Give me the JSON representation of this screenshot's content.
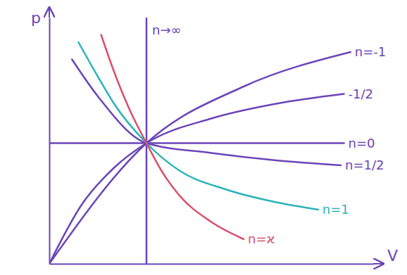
{
  "chart_data": {
    "type": "line",
    "x_label": "V",
    "y_label": "p",
    "xlim": [
      0,
      10
    ],
    "ylim": [
      0,
      10
    ],
    "xticks": [],
    "yticks": [],
    "tick_labels": false,
    "grid": false,
    "series": [
      {
        "name": "n→∞",
        "color": "#6b45b8",
        "x": [
          3,
          3
        ],
        "values": [
          0,
          10
        ]
      },
      {
        "name": "n=-1",
        "color": "#6b45b8",
        "x": [
          0,
          3,
          6,
          9.3
        ],
        "values": [
          0,
          4.9,
          7.2,
          8.6
        ]
      },
      {
        "name": "-1/2",
        "color": "#6b45b8",
        "x": [
          0,
          1,
          2,
          3,
          5,
          7,
          9.1
        ],
        "values": [
          0,
          2.4,
          3.9,
          4.9,
          5.9,
          6.5,
          6.9
        ]
      },
      {
        "name": "n=0",
        "color": "#6b45b8",
        "x": [
          0,
          3,
          9.1
        ],
        "values": [
          4.9,
          4.9,
          4.9
        ]
      },
      {
        "name": "n=1/2",
        "color": "#6b45b8",
        "x": [
          0.7,
          1.5,
          3,
          5,
          7,
          9
        ],
        "values": [
          8.3,
          6.8,
          4.9,
          4.5,
          4.2,
          4.0
        ]
      },
      {
        "name": "n=1",
        "color": "#2bb3b8",
        "x": [
          0.9,
          1.5,
          2,
          3,
          4,
          5.5,
          7,
          8.3
        ],
        "values": [
          9.0,
          7.6,
          6.5,
          4.9,
          3.8,
          3.0,
          2.5,
          2.2
        ]
      },
      {
        "name": "n=ϰ",
        "color": "#d9506a",
        "x": [
          1.6,
          2,
          2.5,
          3,
          3.5,
          4,
          5,
          6
        ],
        "values": [
          9.3,
          7.8,
          6.2,
          4.9,
          3.7,
          2.8,
          1.7,
          1.0
        ]
      }
    ]
  }
}
